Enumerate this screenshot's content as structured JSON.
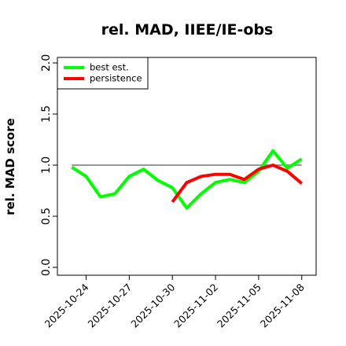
{
  "chart_data": {
    "type": "line",
    "title": "rel. MAD, IIEE/IE-obs",
    "y_label": "rel. MAD score",
    "x": [
      "2025-10-23",
      "2025-10-24",
      "2025-10-25",
      "2025-10-26",
      "2025-10-27",
      "2025-10-28",
      "2025-10-29",
      "2025-10-30",
      "2025-10-31",
      "2025-11-01",
      "2025-11-02",
      "2025-11-03",
      "2025-11-04",
      "2025-11-05",
      "2025-11-06",
      "2025-11-07",
      "2025-11-08"
    ],
    "series": [
      {
        "name": "best est.",
        "color": "#00ff00",
        "values": [
          0.98,
          0.89,
          0.69,
          0.72,
          0.89,
          0.96,
          0.85,
          0.78,
          0.58,
          0.72,
          0.83,
          0.86,
          0.83,
          0.94,
          1.14,
          0.97,
          1.06
        ]
      },
      {
        "name": "persistence",
        "color": "#ff0000",
        "values": [
          null,
          null,
          null,
          null,
          null,
          null,
          null,
          0.64,
          0.83,
          0.89,
          0.91,
          0.91,
          0.86,
          0.96,
          1.0,
          0.94,
          0.82
        ]
      }
    ],
    "reference_line": 1,
    "xlim": [
      "2025-10-22",
      "2025-11-09"
    ],
    "xticks": [
      "2025-10-24",
      "2025-10-27",
      "2025-10-30",
      "2025-11-02",
      "2025-11-05",
      "2025-11-08"
    ],
    "ylim": [
      -0.077,
      2.054
    ],
    "yticks": [
      {
        "value": 0,
        "label": "0.0"
      },
      0.5,
      {
        "value": 1,
        "label": "1.0"
      },
      1.5,
      {
        "value": 2,
        "label": "2.0"
      }
    ],
    "legend": "upper-left"
  }
}
